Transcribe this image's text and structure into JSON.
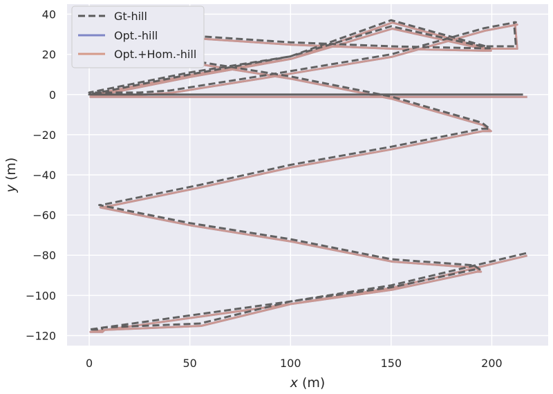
{
  "chart_data": {
    "type": "line",
    "title": "",
    "xlabel_var": "x",
    "xlabel_unit": " (m)",
    "ylabel_var": "y",
    "ylabel_unit": " (m)",
    "xlim": [
      -11,
      228
    ],
    "ylim": [
      -125,
      45
    ],
    "xticks": [
      0,
      50,
      100,
      150,
      200
    ],
    "yticks": [
      -120,
      -100,
      -80,
      -60,
      -40,
      -20,
      0,
      20,
      40
    ],
    "xtick_labels": [
      "0",
      "50",
      "100",
      "150",
      "200"
    ],
    "ytick_labels": [
      "−120",
      "−100",
      "−80",
      "−60",
      "−40",
      "−20",
      "0",
      "20",
      "40"
    ],
    "grid": true,
    "legend_position": "top-left",
    "colors": {
      "background": "#eaeaf2",
      "grid": "#ffffff",
      "gt": "#5a5a5a",
      "opt": "#7f86c6",
      "hom": "#d59a8a"
    },
    "series": [
      {
        "name": "Gt-hill",
        "style": "dashed",
        "x": [
          217,
          150,
          100,
          50,
          0,
          5,
          5,
          6,
          7,
          55,
          100,
          150,
          192,
          193,
          194,
          191,
          150,
          100,
          50,
          5,
          5,
          6,
          55,
          100,
          150,
          195,
          199,
          199,
          195,
          150,
          100,
          50,
          0,
          5,
          6,
          7,
          55,
          100,
          150,
          195,
          199,
          199,
          197,
          150,
          100,
          50,
          0,
          18,
          22,
          25,
          40,
          90,
          150,
          196,
          212,
          211,
          212,
          210,
          208,
          200,
          195,
          150,
          100,
          50,
          0,
          18,
          22,
          24,
          25,
          40,
          90,
          150,
          196,
          212,
          211,
          213,
          212,
          208,
          200,
          195,
          150,
          100,
          50,
          0,
          18,
          22,
          24,
          24,
          26,
          40,
          90,
          150,
          196,
          212,
          211,
          213,
          212,
          212,
          217
        ],
        "y": [
          -79,
          -95,
          -103,
          -110,
          -117,
          -117,
          -117,
          -117,
          -116,
          -114,
          -103,
          -96,
          -87,
          -87,
          -87,
          -85,
          -82,
          -72,
          -64,
          -55,
          -55,
          -55,
          -45,
          -35,
          -26,
          -17,
          -17,
          -17,
          -14,
          -1,
          9,
          17,
          25,
          30,
          30,
          30,
          29,
          26,
          24,
          23,
          23,
          23,
          24,
          37,
          19,
          11,
          1,
          1,
          1,
          1,
          2,
          10,
          20,
          33,
          36,
          36,
          24,
          24,
          24,
          24,
          24,
          34,
          19,
          10,
          0,
          0,
          0,
          0,
          0,
          0,
          0,
          0,
          0,
          0,
          0,
          0,
          0,
          0,
          0,
          0,
          0,
          0,
          0,
          0,
          0,
          0,
          0,
          0,
          0,
          0,
          0,
          0,
          0,
          0,
          0,
          0,
          0,
          0,
          0
        ]
      },
      {
        "name": "Opt.-hill",
        "style": "solid",
        "x": [],
        "y": []
      },
      {
        "name": "Opt.+Hom.-hill",
        "style": "solid",
        "x": [],
        "y": []
      }
    ]
  }
}
